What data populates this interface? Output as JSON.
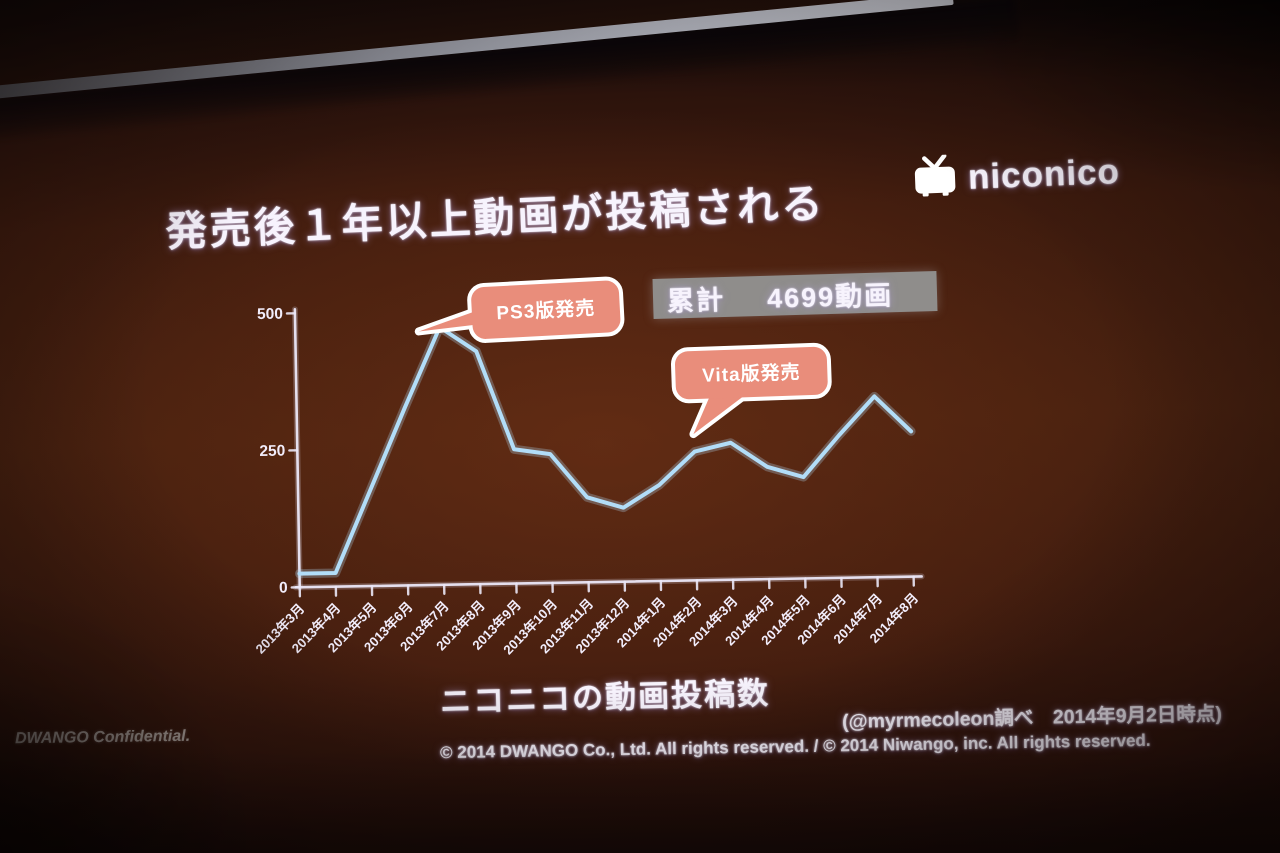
{
  "slide": {
    "logo_text": "niconico",
    "title": "発売後１年以上動画が投稿される",
    "total": {
      "label": "累計",
      "value": "4699動画"
    },
    "callouts": {
      "ps3": {
        "label": "PS3版発売"
      },
      "vita": {
        "label": "Vita版発売"
      }
    },
    "caption": "ニコニコの動画投稿数",
    "attribution": "(@myrmecoleon調べ　2014年9月2日時点)",
    "confidential": "DWANGO Confidential.",
    "copyright": "© 2014 DWANGO Co., Ltd. All rights reserved. / © 2014 Niwango, inc. All rights reserved."
  },
  "chart_data": {
    "type": "line",
    "title": "ニコニコの動画投稿数",
    "categories": [
      "2013年3月",
      "2013年4月",
      "2013年5月",
      "2013年6月",
      "2013年7月",
      "2013年8月",
      "2013年9月",
      "2013年10月",
      "2013年11月",
      "2013年12月",
      "2014年1月",
      "2014年2月",
      "2014年3月",
      "2014年4月",
      "2014年5月",
      "2014年6月",
      "2014年7月",
      "2014年8月"
    ],
    "values": [
      25,
      25,
      175,
      325,
      470,
      425,
      245,
      235,
      155,
      135,
      175,
      235,
      250,
      205,
      185,
      260,
      330,
      265
    ],
    "xlabel": "",
    "ylabel": "",
    "ylim": [
      0,
      500
    ],
    "yticks": [
      0,
      250,
      500
    ],
    "grid": false,
    "legend_position": "none",
    "annotations": [
      {
        "label": "PS3版発売",
        "target": "2013年7月"
      },
      {
        "label": "Vita版発売",
        "target": "2014年2月"
      }
    ],
    "line_color": "#b2ddf8",
    "axis_color": "#ece8f8",
    "callout_fill": "#e98d7b",
    "callout_border": "#ffffff",
    "badge_bg": "#8f8d8b"
  }
}
